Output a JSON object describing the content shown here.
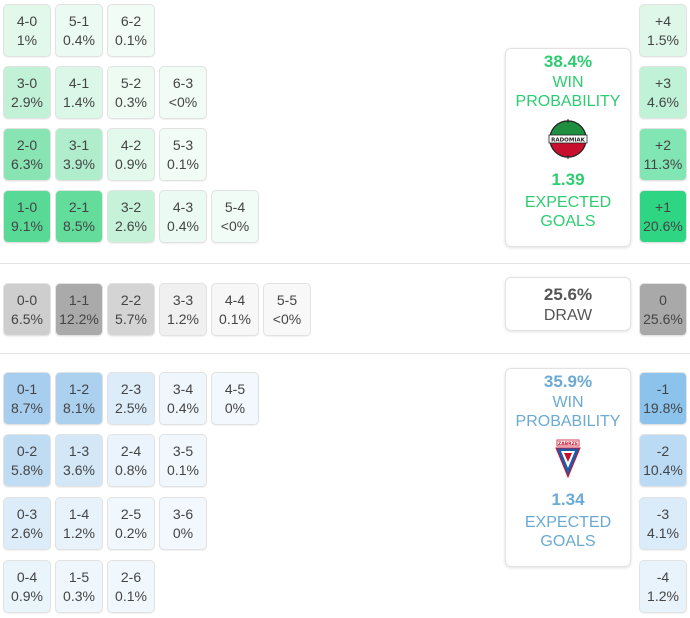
{
  "home_panel": {
    "win_pct": "38.4%",
    "win_label": "WIN PROBABILITY",
    "xg_value": "1.39",
    "xg_label": "EXPECTED GOALS",
    "color": "#2ecc71",
    "logo_icon": "radomiak-crest-icon",
    "logo_text": "RADOMIAK"
  },
  "draw_panel": {
    "pct": "25.6%",
    "label": "DRAW"
  },
  "away_panel": {
    "win_pct": "35.9%",
    "win_label": "WIN PROBABILITY",
    "xg_value": "1.34",
    "xg_label": "EXPECTED GOALS",
    "color": "#7fb3d5",
    "logo_icon": "gornik-zabrze-crest-icon",
    "logo_text": "ZABRZE"
  },
  "home_scores": [
    [
      {
        "score": "4-0",
        "prob": "1%"
      },
      {
        "score": "5-1",
        "prob": "0.4%"
      },
      {
        "score": "6-2",
        "prob": "0.1%"
      }
    ],
    [
      {
        "score": "3-0",
        "prob": "2.9%"
      },
      {
        "score": "4-1",
        "prob": "1.4%"
      },
      {
        "score": "5-2",
        "prob": "0.3%"
      },
      {
        "score": "6-3",
        "prob": "<0%"
      }
    ],
    [
      {
        "score": "2-0",
        "prob": "6.3%"
      },
      {
        "score": "3-1",
        "prob": "3.9%"
      },
      {
        "score": "4-2",
        "prob": "0.9%"
      },
      {
        "score": "5-3",
        "prob": "0.1%"
      }
    ],
    [
      {
        "score": "1-0",
        "prob": "9.1%"
      },
      {
        "score": "2-1",
        "prob": "8.5%"
      },
      {
        "score": "3-2",
        "prob": "2.6%"
      },
      {
        "score": "4-3",
        "prob": "0.4%"
      },
      {
        "score": "5-4",
        "prob": "<0%"
      }
    ]
  ],
  "draw_scores": [
    {
      "score": "0-0",
      "prob": "6.5%"
    },
    {
      "score": "1-1",
      "prob": "12.2%"
    },
    {
      "score": "2-2",
      "prob": "5.7%"
    },
    {
      "score": "3-3",
      "prob": "1.2%"
    },
    {
      "score": "4-4",
      "prob": "0.1%"
    },
    {
      "score": "5-5",
      "prob": "<0%"
    }
  ],
  "away_scores": [
    [
      {
        "score": "0-1",
        "prob": "8.7%"
      },
      {
        "score": "1-2",
        "prob": "8.1%"
      },
      {
        "score": "2-3",
        "prob": "2.5%"
      },
      {
        "score": "3-4",
        "prob": "0.4%"
      },
      {
        "score": "4-5",
        "prob": "0%"
      }
    ],
    [
      {
        "score": "0-2",
        "prob": "5.8%"
      },
      {
        "score": "1-3",
        "prob": "3.6%"
      },
      {
        "score": "2-4",
        "prob": "0.8%"
      },
      {
        "score": "3-5",
        "prob": "0.1%"
      }
    ],
    [
      {
        "score": "0-3",
        "prob": "2.6%"
      },
      {
        "score": "1-4",
        "prob": "1.2%"
      },
      {
        "score": "2-5",
        "prob": "0.2%"
      },
      {
        "score": "3-6",
        "prob": "0%"
      }
    ],
    [
      {
        "score": "0-4",
        "prob": "0.9%"
      },
      {
        "score": "1-5",
        "prob": "0.3%"
      },
      {
        "score": "2-6",
        "prob": "0.1%"
      }
    ]
  ],
  "home_margins": [
    {
      "margin": "+4",
      "prob": "1.5%"
    },
    {
      "margin": "+3",
      "prob": "4.6%"
    },
    {
      "margin": "+2",
      "prob": "11.3%"
    },
    {
      "margin": "+1",
      "prob": "20.6%"
    }
  ],
  "draw_margin": {
    "margin": "0",
    "prob": "25.6%"
  },
  "away_margins": [
    {
      "margin": "-1",
      "prob": "19.8%"
    },
    {
      "margin": "-2",
      "prob": "10.4%"
    },
    {
      "margin": "-3",
      "prob": "4.1%"
    },
    {
      "margin": "-4",
      "prob": "1.2%"
    }
  ]
}
